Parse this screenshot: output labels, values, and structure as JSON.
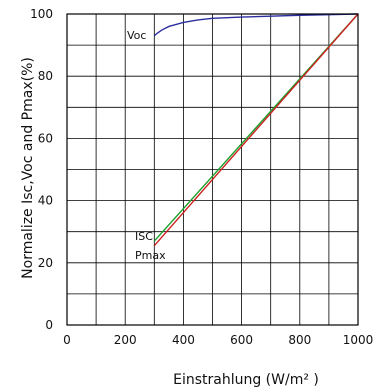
{
  "chart_data": {
    "type": "line",
    "xlabel": "Einstrahlung (W/m² )",
    "ylabel": "Normalize Isc,Voc and Pmax(%)",
    "xlim": [
      0,
      1000
    ],
    "ylim": [
      0,
      100
    ],
    "grid": true,
    "legend": "inline labels",
    "x_ticks": [
      "0",
      "200",
      "400",
      "600",
      "800",
      "1000"
    ],
    "y_ticks": [
      "0",
      "20",
      "40",
      "60",
      "80",
      "100"
    ],
    "series": [
      {
        "name": "Voc",
        "color": "#2b2f9e",
        "x": [
          300,
          310,
          325,
          350,
          400,
          450,
          500,
          600,
          700,
          800,
          900,
          1000
        ],
        "y": [
          93.0,
          93.8,
          94.8,
          96.0,
          97.3,
          98.1,
          98.6,
          99.0,
          99.3,
          99.6,
          99.8,
          100.0
        ]
      },
      {
        "name": "ISC",
        "color": "#1aa12a",
        "x": [
          300,
          1000
        ],
        "y": [
          27,
          100
        ]
      },
      {
        "name": "Pmax",
        "color": "#cc2222",
        "x": [
          300,
          1000
        ],
        "y": [
          25.5,
          100
        ]
      }
    ]
  }
}
